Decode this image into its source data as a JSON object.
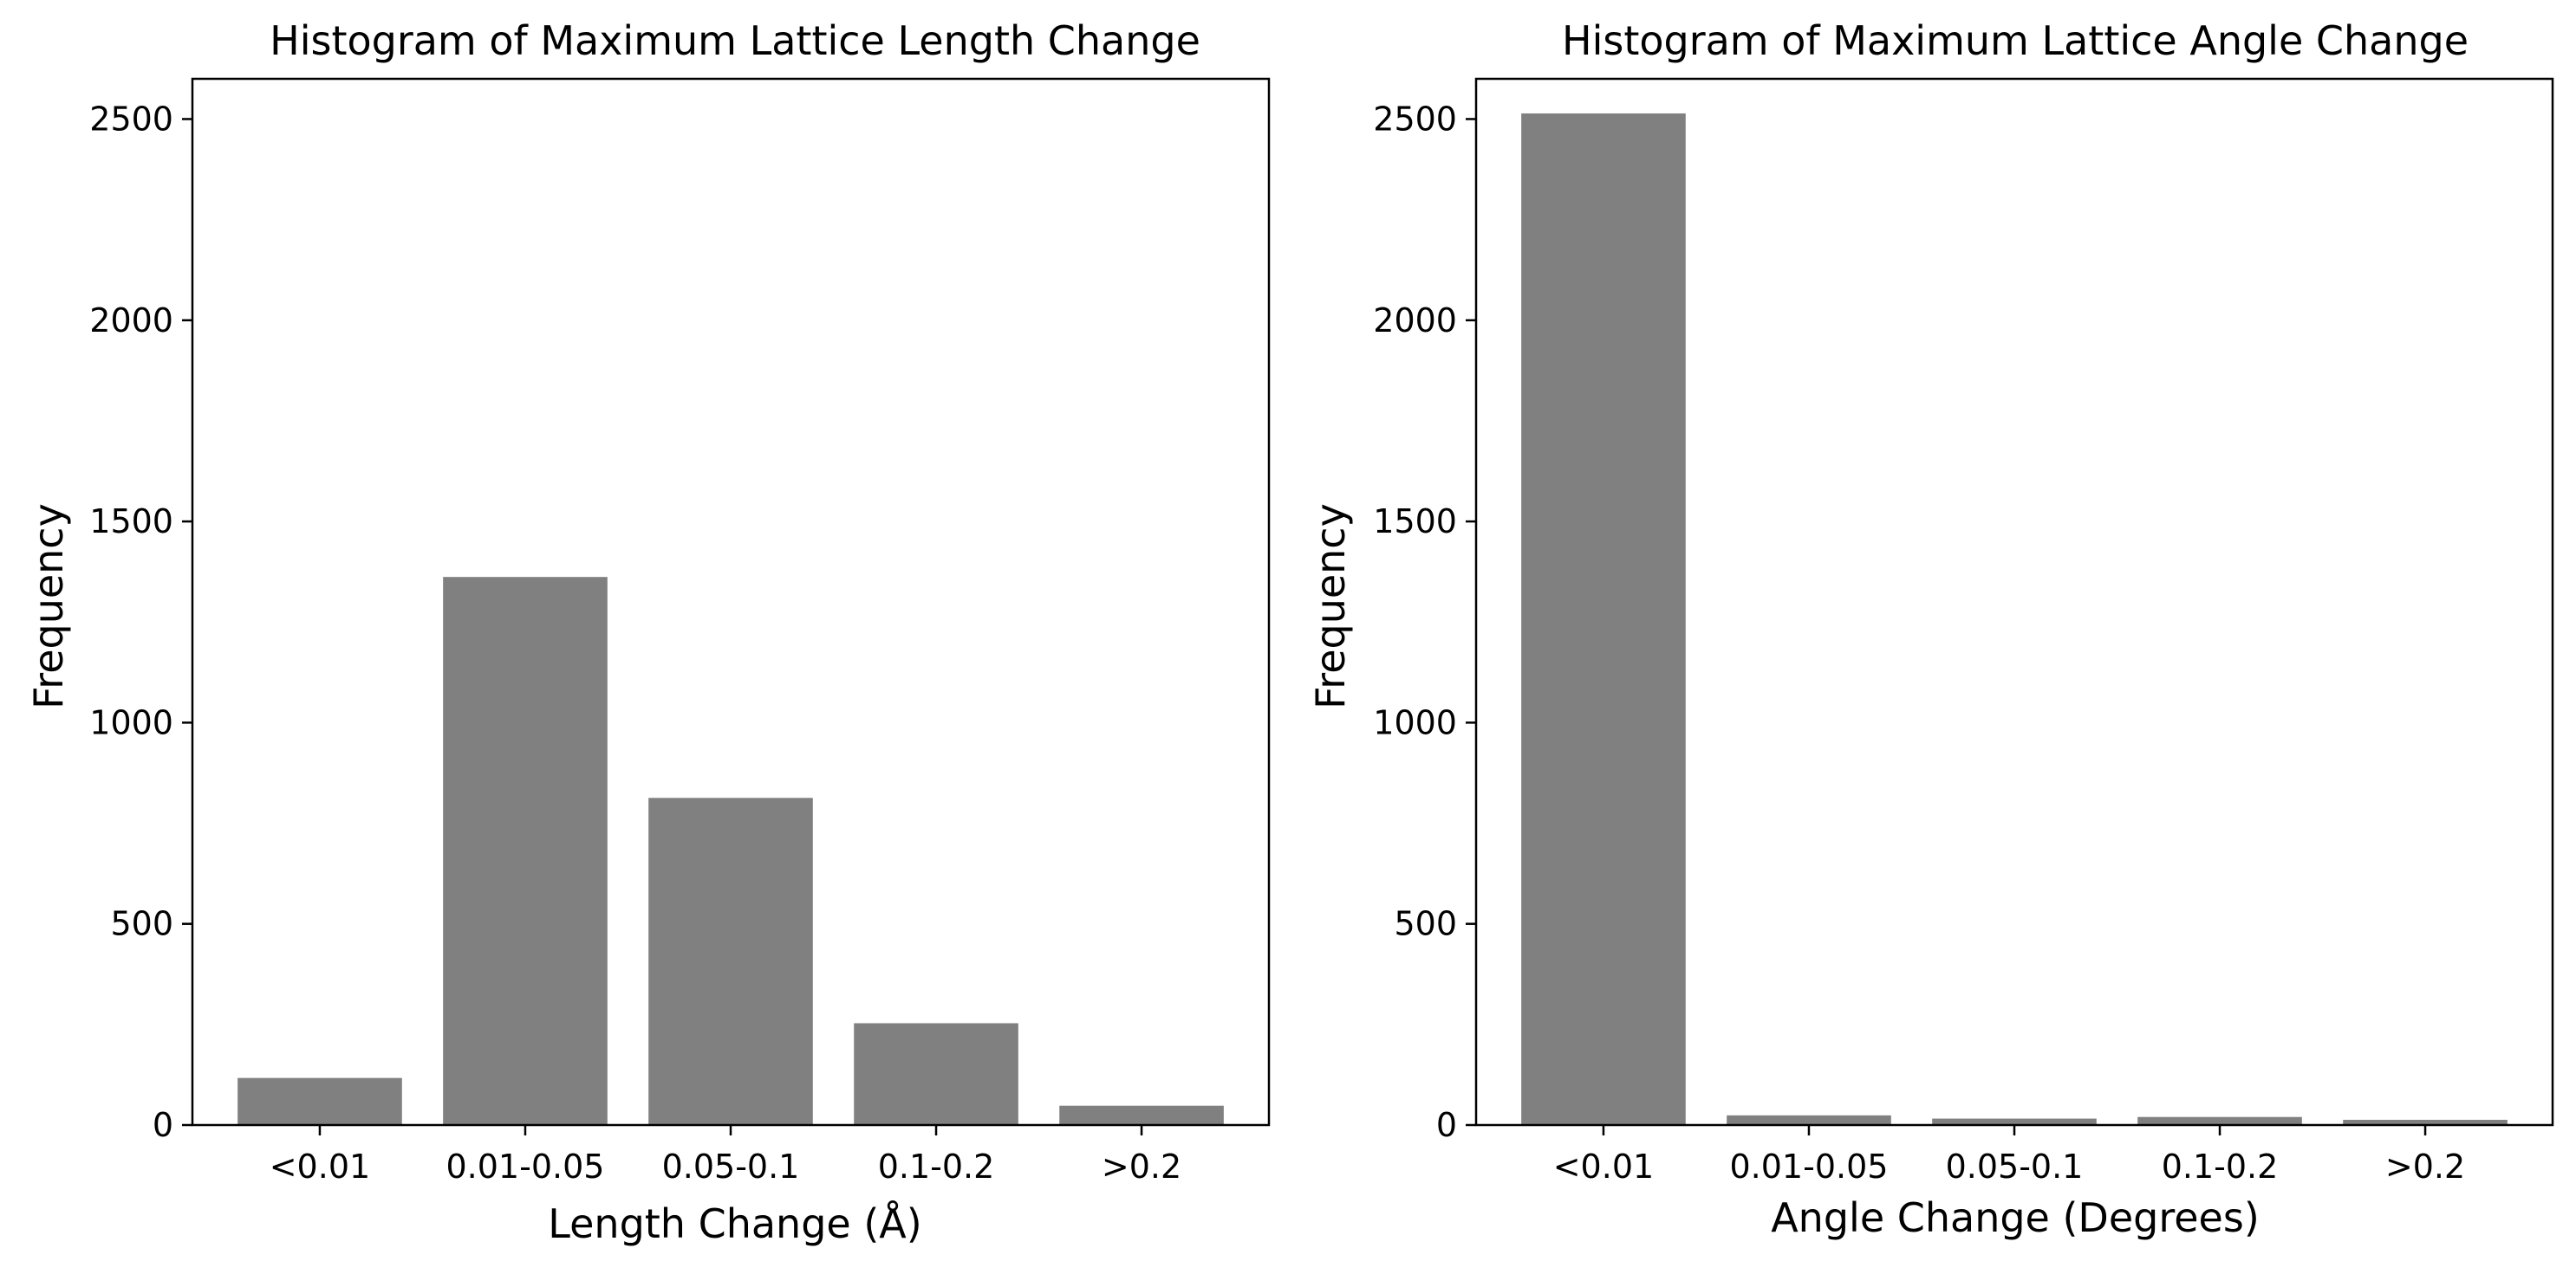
{
  "figure": {
    "background": "#ffffff",
    "bar_color": "#808080"
  },
  "chart_data": [
    {
      "type": "bar",
      "title": "Histogram of Maximum Lattice Length Change",
      "xlabel": "Length Change (Å)",
      "ylabel": "Frequency",
      "categories": [
        "<0.01",
        "0.01-0.05",
        "0.05-0.1",
        "0.1-0.2",
        ">0.2"
      ],
      "values": [
        117,
        1362,
        813,
        253,
        48
      ],
      "ylim": [
        0,
        2600
      ],
      "yticks": [
        0,
        500,
        1000,
        1500,
        2000,
        2500
      ],
      "grid": false,
      "legend": "none"
    },
    {
      "type": "bar",
      "title": "Histogram of Maximum Lattice Angle Change",
      "xlabel": "Angle Change (Degrees)",
      "ylabel": "Frequency",
      "categories": [
        "<0.01",
        "0.01-0.05",
        "0.05-0.1",
        "0.1-0.2",
        ">0.2"
      ],
      "values": [
        2514,
        24,
        16,
        20,
        13
      ],
      "ylim": [
        0,
        2600
      ],
      "yticks": [
        0,
        500,
        1000,
        1500,
        2000,
        2500
      ],
      "grid": false,
      "legend": "none"
    }
  ]
}
